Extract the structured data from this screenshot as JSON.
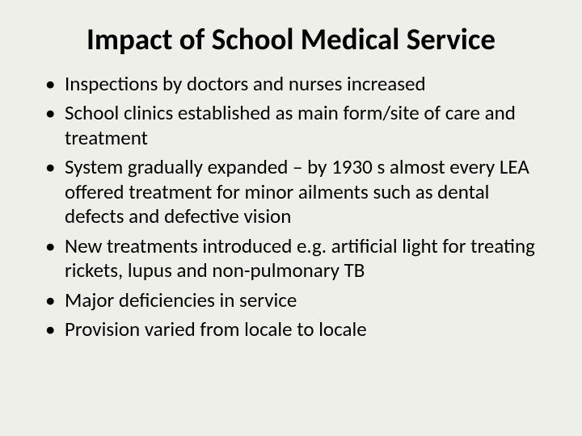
{
  "slide": {
    "background_color": "#eeefe9",
    "text_color": "#000000",
    "font_family": "Calibri, Arial, sans-serif",
    "title": {
      "text": "Impact of School Medical Service",
      "fontsize": 37,
      "weight": 700,
      "align": "center"
    },
    "bullets": {
      "fontsize": 25,
      "line_height": 1.22,
      "marker": "•",
      "items": [
        "Inspections by doctors and nurses increased",
        "School clinics established as main form/site of care and treatment",
        "System gradually expanded – by 1930 s almost every LEA offered treatment for minor ailments such as dental defects and defective vision",
        "New treatments introduced e.g. artificial light for treating rickets, lupus and non-pulmonary TB",
        "Major deficiencies in service",
        "Provision varied from locale to locale"
      ]
    }
  }
}
